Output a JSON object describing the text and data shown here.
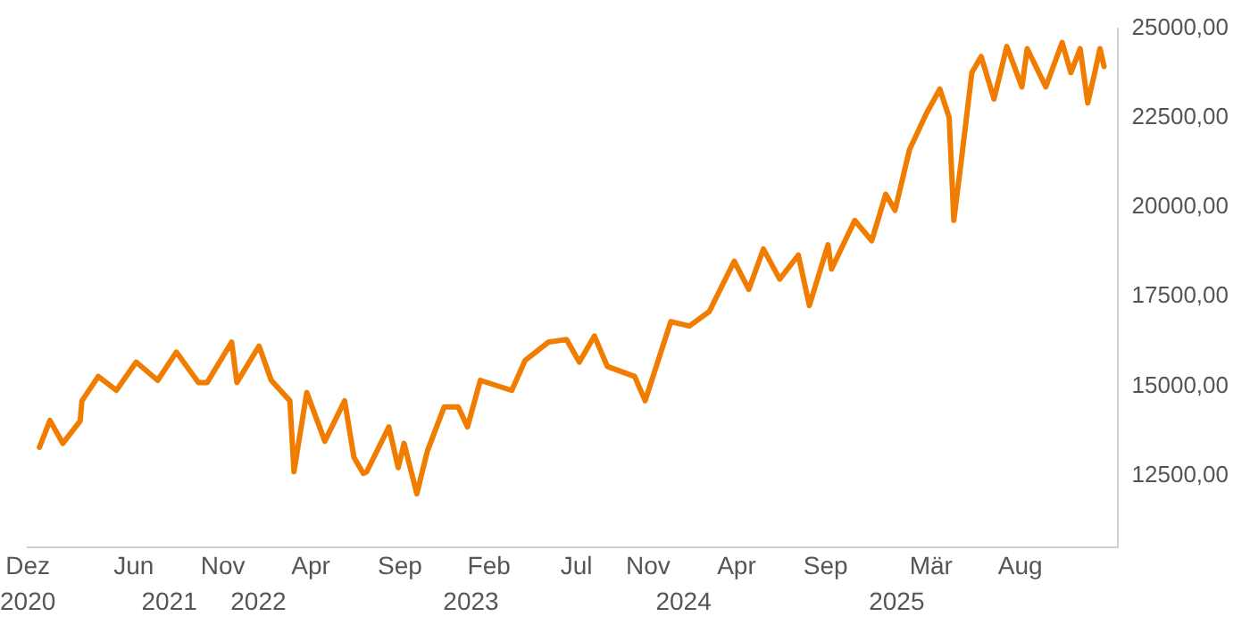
{
  "chart_data": {
    "type": "line",
    "x": [
      "2020-12-21",
      "2021-01-08",
      "2021-01-30",
      "2021-03-01",
      "2021-03-04",
      "2021-04-01",
      "2021-05-02",
      "2021-06-05",
      "2021-07-12",
      "2021-08-13",
      "2021-09-20",
      "2021-10-05",
      "2021-11-16",
      "2021-11-25",
      "2022-01-02",
      "2022-01-23",
      "2022-02-24",
      "2022-03-03",
      "2022-03-25",
      "2022-04-25",
      "2022-05-29",
      "2022-06-14",
      "2022-06-30",
      "2022-07-06",
      "2022-08-13",
      "2022-08-29",
      "2022-09-08",
      "2022-09-30",
      "2022-10-18",
      "2022-11-16",
      "2022-12-10",
      "2022-12-26",
      "2023-01-17",
      "2023-03-12",
      "2023-04-04",
      "2023-05-14",
      "2023-06-14",
      "2023-07-06",
      "2023-08-01",
      "2023-08-23",
      "2023-10-09",
      "2023-10-27",
      "2023-12-10",
      "2024-01-11",
      "2024-02-14",
      "2024-03-28",
      "2024-04-22",
      "2024-05-17",
      "2024-06-14",
      "2024-07-16",
      "2024-08-04",
      "2024-09-05",
      "2024-09-11",
      "2024-10-21",
      "2024-11-19",
      "2024-12-13",
      "2024-12-29",
      "2025-01-23",
      "2025-02-21",
      "2025-03-16",
      "2025-04-01",
      "2025-04-09",
      "2025-04-22",
      "2025-05-10",
      "2025-05-26",
      "2025-06-17",
      "2025-07-09",
      "2025-08-04",
      "2025-08-13",
      "2025-09-14",
      "2025-10-12",
      "2025-10-27",
      "2025-11-12",
      "2025-11-25",
      "2025-12-07",
      "2025-12-16",
      "2025-12-23"
    ],
    "series": [
      {
        "color": "#f07d00",
        "values": [
          13290,
          14040,
          13400,
          14030,
          14590,
          15270,
          14880,
          15670,
          15160,
          15950,
          15100,
          15100,
          16230,
          15100,
          16120,
          15160,
          14590,
          12610,
          14820,
          13460,
          14590,
          13010,
          12560,
          12610,
          13860,
          12720,
          13400,
          11990,
          13180,
          14420,
          14420,
          13860,
          15160,
          14880,
          15720,
          16230,
          16300,
          15670,
          16400,
          15550,
          15270,
          14590,
          16800,
          16680,
          17080,
          18490,
          17700,
          18830,
          17990,
          18660,
          17250,
          18950,
          18270,
          19630,
          19060,
          20360,
          19910,
          21610,
          22620,
          23300,
          22510,
          19630,
          21320,
          23760,
          24210,
          23020,
          24490,
          23360,
          24430,
          23360,
          24600,
          23760,
          24430,
          22910,
          23760,
          24430,
          23930
        ]
      }
    ],
    "xlim": [
      "2020-12-01",
      "2026-01-15"
    ],
    "xticks": [
      {
        "value": "2020-12-01",
        "label": "Dez"
      },
      {
        "value": "2021-06-01",
        "label": "Jun"
      },
      {
        "value": "2021-11-01",
        "label": "Nov"
      },
      {
        "value": "2022-04-01",
        "label": "Apr"
      },
      {
        "value": "2022-09-01",
        "label": "Sep"
      },
      {
        "value": "2023-02-01",
        "label": "Feb"
      },
      {
        "value": "2023-07-01",
        "label": "Jul"
      },
      {
        "value": "2023-11-01",
        "label": "Nov"
      },
      {
        "value": "2024-04-01",
        "label": "Apr"
      },
      {
        "value": "2024-09-01",
        "label": "Sep"
      },
      {
        "value": "2025-03-01",
        "label": "Mär"
      },
      {
        "value": "2025-08-01",
        "label": "Aug"
      }
    ],
    "x2lim": [
      "2020-12-01",
      "2026-01-15"
    ],
    "x2ticks": [
      {
        "value": "2020-12-01",
        "label": "2020"
      },
      {
        "value": "2021-08-01",
        "label": "2021"
      },
      {
        "value": "2022-01-01",
        "label": "2022"
      },
      {
        "value": "2023-01-01",
        "label": "2023"
      },
      {
        "value": "2024-01-01",
        "label": "2024"
      },
      {
        "value": "2025-01-01",
        "label": "2025"
      }
    ],
    "ylim": [
      10500,
      25000
    ],
    "yticks": [
      {
        "value": 12500,
        "label": "12500,00"
      },
      {
        "value": 15000,
        "label": "15000,00"
      },
      {
        "value": 17500,
        "label": "17500,00"
      },
      {
        "value": 20000,
        "label": "20000,00"
      },
      {
        "value": 22500,
        "label": "22500,00"
      },
      {
        "value": 25000,
        "label": "25000,00"
      }
    ]
  }
}
